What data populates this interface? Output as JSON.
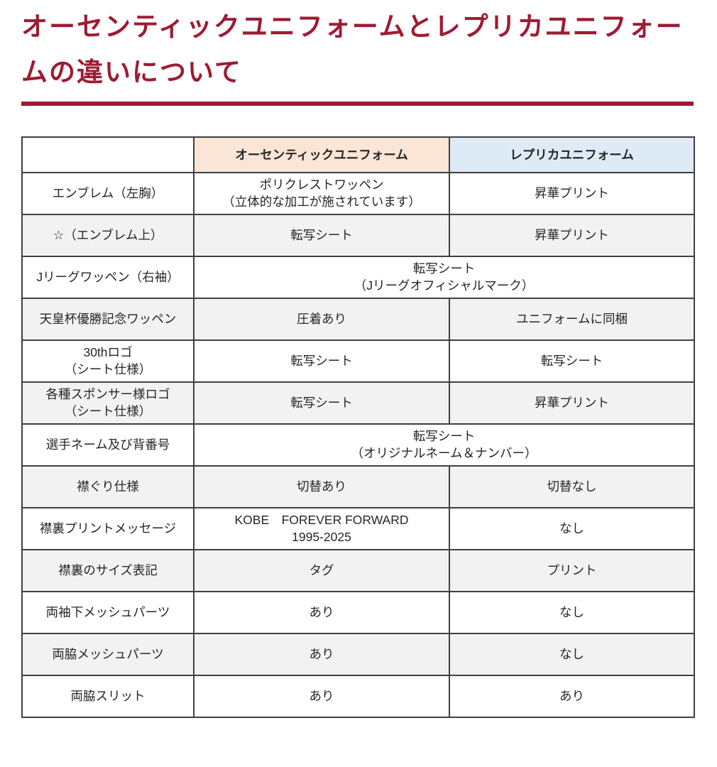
{
  "page": {
    "title": "オーセンティックユニフォームとレプリカユニフォームの違いについて"
  },
  "colors": {
    "title_accent": "#9E1B32",
    "header_authentic_bg": "#FBE5D6",
    "header_replica_bg": "#DEEBF7",
    "row_stripe_bg": "#F2F2F2",
    "table_border": "#404040"
  },
  "table": {
    "columns": {
      "blank": "",
      "authentic": "オーセンティックユニフォーム",
      "replica": "レプリカユニフォーム"
    },
    "rows": [
      {
        "label": "エンブレム（左胸）",
        "authentic": "ポリクレストワッペン\n（立体的な加工が施されています）",
        "replica": "昇華プリント"
      },
      {
        "label": "☆（エンブレム上）",
        "authentic": "転写シート",
        "replica": "昇華プリント"
      },
      {
        "label": "Jリーグワッペン（右袖）",
        "both": "転写シート\n（Jリーグオフィシャルマーク）"
      },
      {
        "label": "天皇杯優勝記念ワッペン",
        "authentic": "圧着あり",
        "replica": "ユニフォームに同梱"
      },
      {
        "label": "30thロゴ\n（シート仕様）",
        "authentic": "転写シート",
        "replica": "転写シート"
      },
      {
        "label": "各種スポンサー様ロゴ\n（シート仕様）",
        "authentic": "転写シート",
        "replica": "昇華プリント"
      },
      {
        "label": "選手ネーム及び背番号",
        "both": "転写シート\n（オリジナルネーム＆ナンバー）"
      },
      {
        "label": "襟ぐり仕様",
        "authentic": "切替あり",
        "replica": "切替なし"
      },
      {
        "label": "襟裏プリントメッセージ",
        "authentic": "KOBE　FOREVER FORWARD\n1995-2025",
        "replica": "なし"
      },
      {
        "label": "襟裏のサイズ表記",
        "authentic": "タグ",
        "replica": "プリント"
      },
      {
        "label": "両袖下メッシュパーツ",
        "authentic": "あり",
        "replica": "なし"
      },
      {
        "label": "両脇メッシュパーツ",
        "authentic": "あり",
        "replica": "なし"
      },
      {
        "label": "両脇スリット",
        "authentic": "あり",
        "replica": "あり"
      }
    ]
  }
}
